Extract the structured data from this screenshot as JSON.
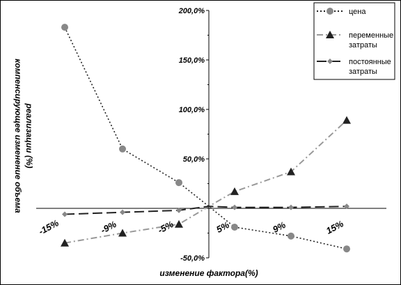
{
  "chart_data": {
    "type": "line",
    "x": [
      "-15%",
      "-9%",
      "-5%",
      "0%",
      "5%",
      "9%",
      "15%"
    ],
    "x_tick_labels": [
      "-15%",
      "-9%",
      "-5%",
      "5%",
      "9%",
      "15%"
    ],
    "ylim": [
      -50,
      200
    ],
    "y_ticks": [
      -50,
      0,
      50,
      100,
      150,
      200
    ],
    "y_tick_labels": [
      "-50,0%",
      "50,0%",
      "100,0%",
      "150,0%",
      "200,0%"
    ],
    "xlabel": "изменение фактора(%)",
    "ylabel_lines": [
      "компенсирующее изменение объема",
      "реализации (%)"
    ],
    "series": [
      {
        "name": "цена",
        "values": [
          183,
          60,
          26,
          2,
          -19,
          -28,
          -41
        ],
        "color": "#888888",
        "marker": "circle",
        "dash": "2,3"
      },
      {
        "name": "переменные затраты",
        "values": [
          -35,
          -25,
          -16,
          2,
          17,
          37,
          89
        ],
        "color": "#888888",
        "marker": "triangle",
        "dash": "9,4,2,4"
      },
      {
        "name": "постоянные затраты",
        "values": [
          -6,
          -4,
          -2,
          2,
          1,
          1,
          2
        ],
        "color": "#888888",
        "marker": "diamond",
        "dash": "14,6"
      }
    ],
    "legend_placement": "top-right",
    "grid": false
  }
}
